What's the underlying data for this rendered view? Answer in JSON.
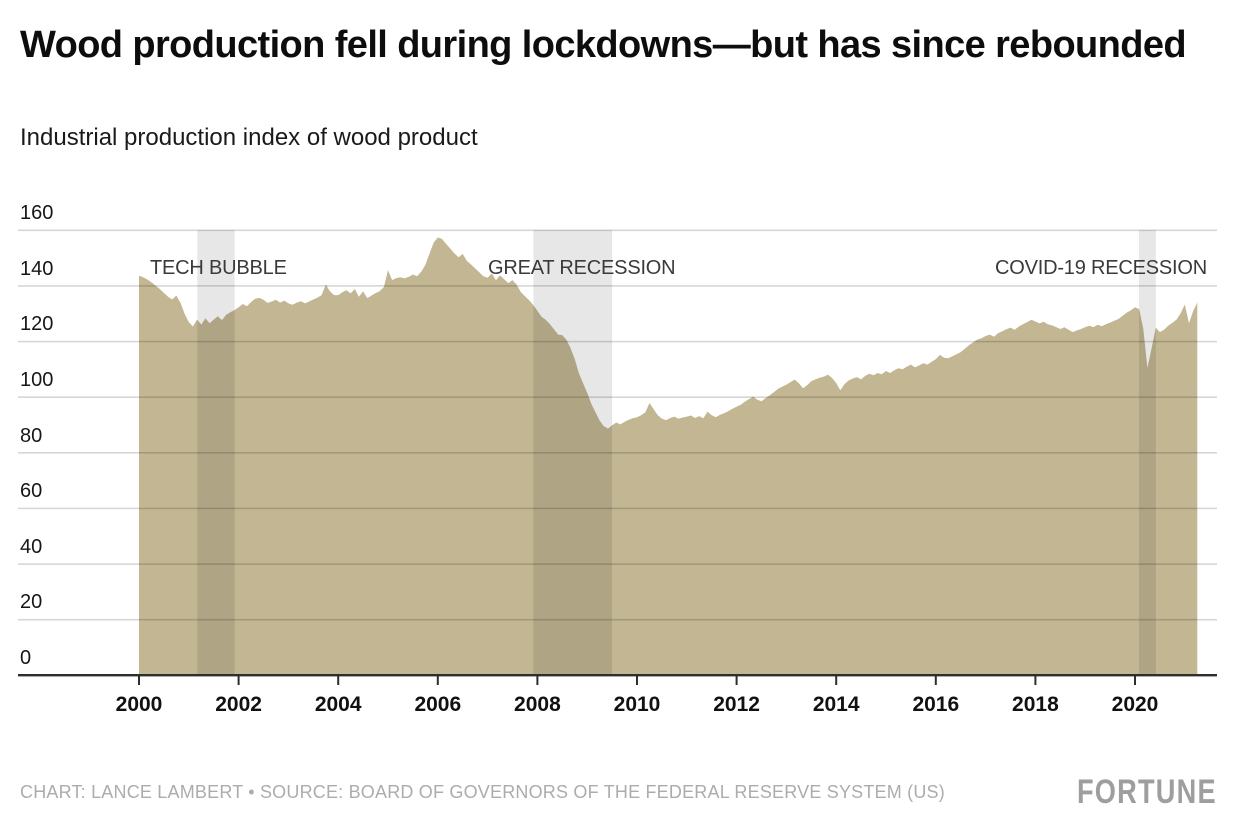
{
  "header": {
    "title_lines": [
      "Wood production fell during lockdowns—but has since rebounded"
    ],
    "subtitle": "Industrial production index of wood product"
  },
  "footer": {
    "credit": "CHART: LANCE LAMBERT • SOURCE: BOARD OF GOVERNORS OF THE FEDERAL RESERVE SYSTEM (US)",
    "brand": "FORTUNE"
  },
  "chart_data": {
    "type": "area",
    "title": "Wood production fell during lockdowns—but has since rebounded",
    "subtitle": "Industrial production index of wood product",
    "xlabel": "",
    "ylabel": "",
    "ylim": [
      0,
      160
    ],
    "grid": "horizontal",
    "x_ticks": [
      2000,
      2002,
      2004,
      2006,
      2008,
      2010,
      2012,
      2014,
      2016,
      2018,
      2020
    ],
    "y_ticks": [
      0,
      20,
      40,
      60,
      80,
      100,
      120,
      140,
      160
    ],
    "frequency": "monthly",
    "x_start": "2000-01",
    "x_end": "2021-04",
    "bands": [
      {
        "label": "TECH BUBBLE",
        "start_year": 2001.17,
        "end_year": 2001.92
      },
      {
        "label": "GREAT RECESSION",
        "start_year": 2007.92,
        "end_year": 2009.5
      },
      {
        "label": "COVID-19 RECESSION",
        "start_year": 2020.08,
        "end_year": 2020.42
      }
    ],
    "series": [
      {
        "name": "Industrial production index of wood product",
        "values": [
          143.6,
          143.0,
          142.2,
          141.2,
          140.0,
          138.8,
          137.4,
          136.0,
          135.0,
          136.4,
          133.8,
          129.8,
          126.9,
          125.3,
          127.8,
          126.0,
          128.3,
          126.5,
          127.8,
          129.0,
          127.6,
          129.5,
          130.4,
          131.2,
          132.2,
          133.4,
          132.6,
          134.1,
          135.3,
          135.6,
          134.9,
          133.8,
          134.3,
          134.9,
          133.9,
          134.6,
          133.6,
          133.1,
          133.9,
          134.4,
          133.6,
          134.3,
          135.0,
          135.7,
          136.6,
          140.4,
          138.0,
          136.6,
          136.6,
          137.6,
          138.4,
          137.2,
          138.8,
          136.0,
          138.0,
          135.5,
          136.4,
          137.3,
          138.0,
          139.5,
          145.6,
          142.0,
          142.7,
          143.0,
          142.6,
          143.2,
          144.0,
          143.4,
          145.0,
          147.4,
          151.5,
          155.4,
          157.3,
          156.8,
          155.0,
          153.3,
          151.6,
          150.2,
          151.4,
          148.9,
          147.6,
          146.2,
          144.8,
          143.4,
          142.8,
          144.4,
          141.9,
          143.7,
          142.3,
          140.9,
          142.0,
          140.3,
          137.7,
          136.2,
          134.8,
          133.0,
          131.0,
          128.8,
          127.7,
          126.2,
          124.3,
          122.4,
          122.2,
          120.5,
          117.5,
          113.5,
          108.5,
          105.0,
          101.5,
          97.5,
          94.5,
          91.5,
          89.5,
          88.6,
          89.8,
          90.8,
          90.1,
          91.0,
          91.8,
          92.3,
          92.7,
          93.4,
          94.4,
          97.8,
          95.6,
          93.4,
          92.2,
          91.6,
          92.4,
          92.9,
          92.1,
          92.6,
          92.9,
          93.3,
          92.4,
          93.1,
          92.3,
          94.7,
          93.4,
          92.7,
          93.6,
          94.1,
          94.9,
          95.7,
          96.5,
          97.2,
          98.3,
          99.2,
          100.1,
          99.0,
          98.4,
          99.6,
          100.6,
          101.7,
          102.9,
          103.7,
          104.4,
          105.3,
          106.2,
          104.9,
          103.1,
          104.2,
          105.6,
          106.3,
          106.9,
          107.3,
          108.0,
          106.8,
          105.0,
          102.4,
          104.6,
          105.9,
          106.6,
          107.1,
          106.3,
          107.6,
          108.3,
          107.8,
          108.6,
          108.1,
          109.3,
          108.6,
          109.6,
          110.3,
          109.9,
          110.9,
          111.6,
          110.6,
          111.3,
          112.1,
          111.6,
          112.6,
          113.6,
          115.1,
          114.1,
          113.9,
          114.6,
          115.3,
          116.1,
          117.3,
          118.6,
          119.6,
          120.6,
          121.1,
          121.9,
          122.4,
          121.6,
          122.9,
          123.6,
          124.3,
          124.9,
          124.1,
          125.3,
          126.1,
          126.9,
          127.7,
          127.1,
          126.4,
          127.0,
          126.1,
          125.7,
          125.1,
          124.4,
          125.0,
          124.1,
          123.3,
          123.9,
          124.4,
          125.1,
          125.6,
          125.1,
          125.9,
          125.4,
          126.1,
          126.7,
          127.4,
          128.0,
          129.1,
          130.3,
          131.1,
          132.2,
          131.5,
          124.5,
          110.4,
          117.5,
          124.9,
          123.3,
          124.1,
          125.6,
          126.6,
          127.8,
          130.1,
          133.2,
          126.5,
          130.8,
          133.9
        ]
      }
    ],
    "colors": {
      "area": "#C2B792",
      "recession_band": "rgba(0,0,0,0.095)",
      "gridline": "rgba(0,0,0,0.16)",
      "axis": "#2e2e2e",
      "band_label": "#3a3a3a"
    }
  }
}
